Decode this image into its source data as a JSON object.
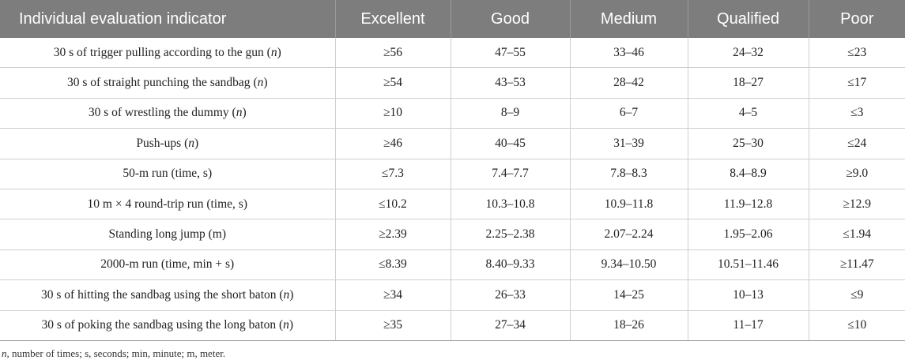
{
  "table": {
    "headers": [
      "Individual evaluation indicator",
      "Excellent",
      "Good",
      "Medium",
      "Qualified",
      "Poor"
    ],
    "rows": [
      {
        "label": "30 s of trigger pulling according to the gun",
        "unit": "n",
        "values": [
          "≥56",
          "47–55",
          "33–46",
          "24–32",
          "≤23"
        ]
      },
      {
        "label": "30 s of straight punching the sandbag",
        "unit": "n",
        "values": [
          "≥54",
          "43–53",
          "28–42",
          "18–27",
          "≤17"
        ]
      },
      {
        "label": "30 s of wrestling the dummy",
        "unit": "n",
        "values": [
          "≥10",
          "8–9",
          "6–7",
          "4–5",
          "≤3"
        ]
      },
      {
        "label": "Push-ups",
        "unit": "n",
        "values": [
          "≥46",
          "40–45",
          "31–39",
          "25–30",
          "≤24"
        ]
      },
      {
        "label": "50-m run (time, s)",
        "unit": "",
        "values": [
          "≤7.3",
          "7.4–7.7",
          "7.8–8.3",
          "8.4–8.9",
          "≥9.0"
        ]
      },
      {
        "label": "10 m × 4 round-trip run (time, s)",
        "unit": "",
        "values": [
          "≤10.2",
          "10.3–10.8",
          "10.9–11.8",
          "11.9–12.8",
          "≥12.9"
        ]
      },
      {
        "label": "Standing long jump (m)",
        "unit": "",
        "values": [
          "≥2.39",
          "2.25–2.38",
          "2.07–2.24",
          "1.95–2.06",
          "≤1.94"
        ]
      },
      {
        "label": "2000-m run (time, min + s)",
        "unit": "",
        "values": [
          "≤8.39",
          "8.40–9.33",
          "9.34–10.50",
          "10.51–11.46",
          "≥11.47"
        ]
      },
      {
        "label": "30 s of hitting the sandbag using the short baton",
        "unit": "n",
        "values": [
          "≥34",
          "26–33",
          "14–25",
          "10–13",
          "≤9"
        ]
      },
      {
        "label": "30 s of poking the sandbag using the long baton",
        "unit": "n",
        "values": [
          "≥35",
          "27–34",
          "18–26",
          "11–17",
          "≤10"
        ]
      }
    ]
  },
  "footnote": {
    "symbol": "n",
    "text": ", number of times; s, seconds; min, minute; m, meter."
  }
}
